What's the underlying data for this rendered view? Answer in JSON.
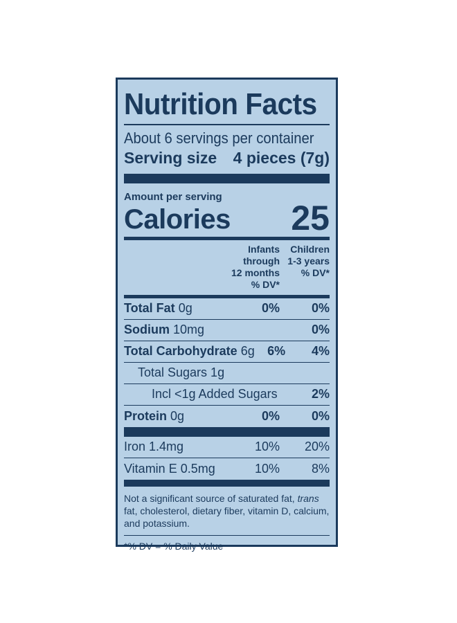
{
  "title": "Nutrition Facts",
  "servings_per_container": "About 6 servings per container",
  "serving_size": {
    "label": "Serving size",
    "value": "4 pieces (7g)"
  },
  "amount_per_serving": "Amount per serving",
  "calories": {
    "label": "Calories",
    "value": "25"
  },
  "dv_headers": {
    "infants": [
      "Infants through",
      "12 months",
      "% DV*"
    ],
    "children": [
      "Children",
      "1-3 years",
      "% DV*"
    ]
  },
  "nutrients": [
    {
      "name": "Total Fat",
      "amount": "0g",
      "infants": "0%",
      "children": "0%"
    },
    {
      "name": "Sodium",
      "amount": "10mg",
      "infants": "",
      "children": "0%"
    },
    {
      "name": "Total Carbohydrate",
      "amount": "6g",
      "infants": "6%",
      "children": "4%"
    },
    {
      "name": "Total Sugars 1g",
      "amount": "",
      "infants": "",
      "children": ""
    },
    {
      "name": "Incl <1g Added Sugars",
      "amount": "",
      "infants": "",
      "children": "2%"
    },
    {
      "name": "Protein",
      "amount": "0g",
      "infants": "0%",
      "children": "0%"
    }
  ],
  "vitamins": [
    {
      "name": "Iron 1.4mg",
      "infants": "10%",
      "children": "20%"
    },
    {
      "name": "Vitamin E 0.5mg",
      "infants": "10%",
      "children": "8%"
    }
  ],
  "footnote": {
    "part1": "Not a significant source of saturated fat, ",
    "italic": "trans",
    "part2": " fat, cholesterol, dietary fiber, vitamin D, calcium, and potassium."
  },
  "dv_note": "*% DV = % Daily Value"
}
